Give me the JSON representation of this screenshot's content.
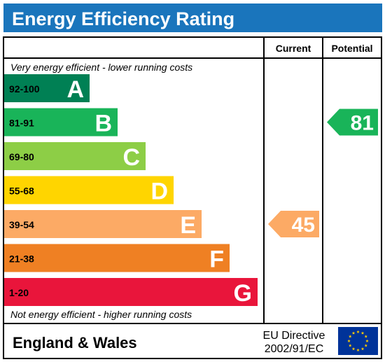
{
  "title": "Energy Efficiency Rating",
  "columns": {
    "current": "Current",
    "potential": "Potential"
  },
  "top_note": "Very energy efficient - lower running costs",
  "bottom_note": "Not energy efficient - higher running costs",
  "footer": {
    "region": "England & Wales",
    "directive_line1": "EU Directive",
    "directive_line2": "2002/91/EC",
    "flag_icon": "eu-flag-icon"
  },
  "chart_data": {
    "type": "bar",
    "bands": [
      {
        "letter": "A",
        "range": "92-100",
        "color": "#008054"
      },
      {
        "letter": "B",
        "range": "81-91",
        "color": "#19b459"
      },
      {
        "letter": "C",
        "range": "69-80",
        "color": "#8dce46"
      },
      {
        "letter": "D",
        "range": "55-68",
        "color": "#ffd500"
      },
      {
        "letter": "E",
        "range": "39-54",
        "color": "#fcaa65"
      },
      {
        "letter": "F",
        "range": "21-38",
        "color": "#ef8023"
      },
      {
        "letter": "G",
        "range": "1-20",
        "color": "#e9153b"
      }
    ],
    "current": {
      "value": 45,
      "band": "E",
      "color": "#fcaa65"
    },
    "potential": {
      "value": 81,
      "band": "B",
      "color": "#19b459"
    }
  }
}
